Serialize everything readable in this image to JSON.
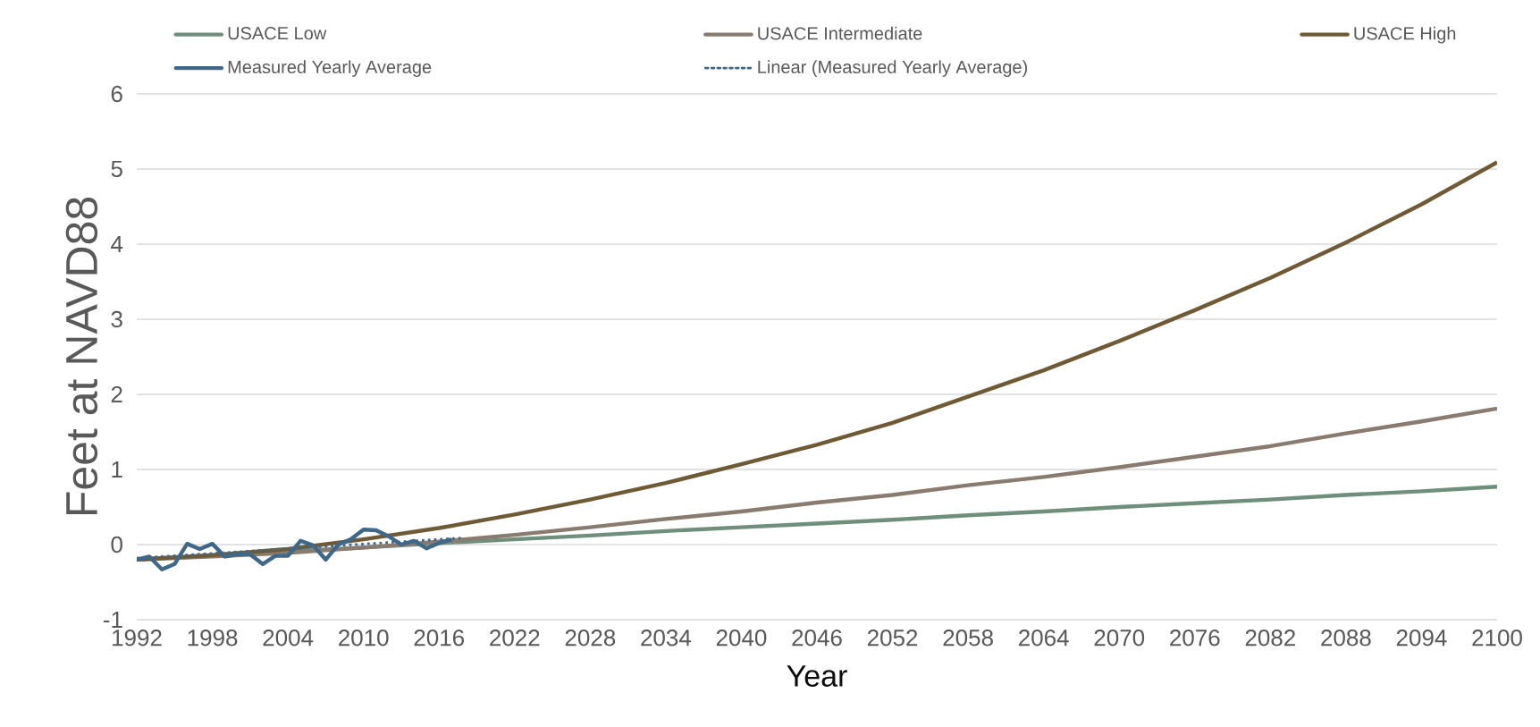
{
  "chart_data": {
    "type": "line",
    "xlabel": "Year",
    "ylabel": "Feet at NAVD88",
    "xlim": [
      1992,
      2100
    ],
    "xticks": [
      1992,
      1998,
      2004,
      2010,
      2016,
      2022,
      2028,
      2034,
      2040,
      2046,
      2052,
      2058,
      2064,
      2070,
      2076,
      2082,
      2088,
      2094,
      2100
    ],
    "ylim": [
      -1,
      6
    ],
    "yticks": [
      -1,
      0,
      1,
      2,
      3,
      4,
      5,
      6
    ],
    "grid": "y",
    "legend": "top",
    "marker": "none",
    "line_style": "solid",
    "x": [
      1992,
      1998,
      2004,
      2010,
      2016,
      2022,
      2028,
      2034,
      2040,
      2046,
      2052,
      2058,
      2064,
      2070,
      2076,
      2082,
      2088,
      2094,
      2100
    ],
    "series": [
      {
        "name": "USACE Low",
        "color": "#6f8f7c",
        "values": [
          -0.2,
          -0.15,
          -0.09,
          -0.04,
          0.02,
          0.07,
          0.12,
          0.18,
          0.23,
          0.28,
          0.33,
          0.39,
          0.44,
          0.5,
          0.55,
          0.6,
          0.66,
          0.71,
          0.77
        ]
      },
      {
        "name": "USACE Intermediate",
        "color": "#8a7b70",
        "values": [
          -0.2,
          -0.16,
          -0.11,
          -0.04,
          0.04,
          0.13,
          0.23,
          0.34,
          0.44,
          0.56,
          0.66,
          0.79,
          0.9,
          1.03,
          1.17,
          1.31,
          1.48,
          1.64,
          1.81
        ]
      },
      {
        "name": "USACE High",
        "color": "#6f5a36",
        "values": [
          -0.2,
          -0.14,
          -0.06,
          0.07,
          0.22,
          0.4,
          0.6,
          0.82,
          1.07,
          1.33,
          1.62,
          1.97,
          2.32,
          2.71,
          3.12,
          3.55,
          4.02,
          4.53,
          5.09
        ]
      },
      {
        "name": "Measured Yearly Average",
        "color": "#3f6789",
        "x": [
          1992,
          1993,
          1994,
          1995,
          1996,
          1997,
          1998,
          1999,
          2000,
          2001,
          2002,
          2003,
          2004,
          2005,
          2006,
          2007,
          2008,
          2009,
          2010,
          2011,
          2012,
          2013,
          2014,
          2015,
          2016,
          2017
        ],
        "values": [
          -0.2,
          -0.16,
          -0.33,
          -0.26,
          0.01,
          -0.06,
          0.01,
          -0.16,
          -0.13,
          -0.13,
          -0.26,
          -0.15,
          -0.15,
          0.05,
          -0.01,
          -0.2,
          0.0,
          0.07,
          0.2,
          0.19,
          0.11,
          0.0,
          0.05,
          -0.05,
          0.02,
          0.07
        ]
      },
      {
        "name": "Linear (Measured Yearly Average)",
        "color": "#3f6789",
        "line_style": "dotted",
        "x": [
          1992,
          2018
        ],
        "values": [
          -0.18,
          0.09
        ]
      }
    ]
  }
}
